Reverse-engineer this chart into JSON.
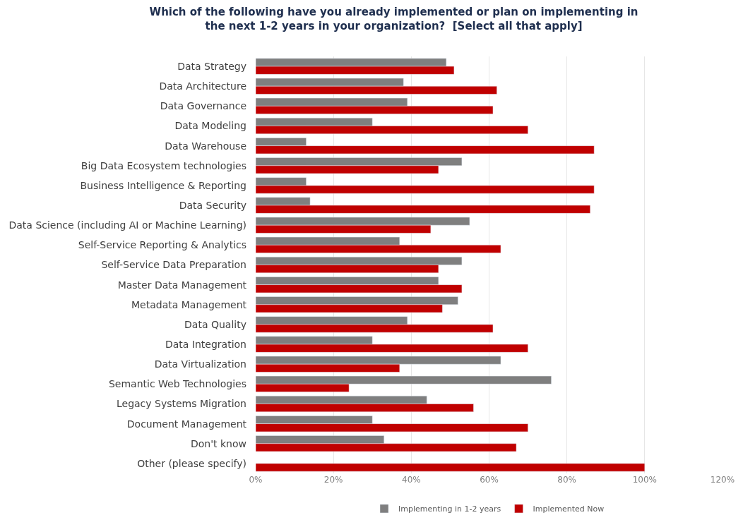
{
  "chart_data": {
    "type": "bar",
    "orientation": "horizontal",
    "title": "Which of the following have you already implemented or plan on implementing in the next 1-2 years in your organization?  [Select all that apply]",
    "categories": [
      "Data Strategy",
      "Data Architecture",
      "Data Governance",
      "Data Modeling",
      "Data Warehouse",
      "Big Data Ecosystem technologies",
      "Business Intelligence & Reporting",
      "Data Security",
      "Data Science (including AI or Machine Learning)",
      "Self-Service Reporting & Analytics",
      "Self-Service Data Preparation",
      "Master Data Management",
      "Metadata Management",
      "Data Quality",
      "Data Integration",
      "Data Virtualization",
      "Semantic Web Technologies",
      "Legacy Systems Migration",
      "Document Management",
      "Don't know",
      "Other (please specify)"
    ],
    "series": [
      {
        "name": "Implementing in 1-2 years",
        "color": "#7f7f7f",
        "values": [
          49,
          38,
          39,
          30,
          13,
          53,
          13,
          14,
          55,
          37,
          53,
          47,
          52,
          39,
          30,
          63,
          76,
          44,
          30,
          33,
          null
        ]
      },
      {
        "name": "Implemented Now",
        "color": "#c00000",
        "values": [
          51,
          62,
          61,
          70,
          87,
          47,
          87,
          86,
          45,
          63,
          47,
          53,
          48,
          61,
          70,
          37,
          24,
          56,
          70,
          67,
          100
        ]
      }
    ],
    "xlim": [
      0,
      120
    ],
    "xticks": [
      {
        "value": 0,
        "label": "0%"
      },
      {
        "value": 20,
        "label": "20%"
      },
      {
        "value": 40,
        "label": "40%"
      },
      {
        "value": 60,
        "label": "60%"
      },
      {
        "value": 80,
        "label": "80%"
      },
      {
        "value": 100,
        "label": "100%"
      },
      {
        "value": 120,
        "label": "120%"
      }
    ],
    "grid": "x",
    "legend": "bottom"
  }
}
